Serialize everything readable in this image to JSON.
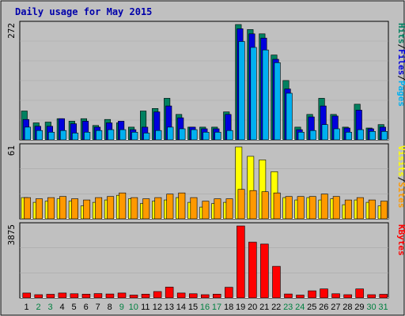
{
  "chart_data": {
    "type": "bar",
    "title": "Daily usage for May 2015",
    "categories": [
      "1",
      "2",
      "3",
      "4",
      "5",
      "6",
      "7",
      "8",
      "9",
      "10",
      "11",
      "12",
      "13",
      "14",
      "15",
      "16",
      "17",
      "18",
      "19",
      "20",
      "21",
      "22",
      "23",
      "24",
      "25",
      "26",
      "27",
      "28",
      "29",
      "30",
      "31"
    ],
    "weekend_days": [
      "2",
      "3",
      "9",
      "10",
      "16",
      "17",
      "23",
      "24",
      "30",
      "31"
    ],
    "colors": {
      "background": "#ffffff",
      "frame": "#c0c0c0",
      "plot_bg": "#c0c0c0",
      "title": "#0000aa",
      "hits": "#008060",
      "files": "#0000dd",
      "pages": "#00b0f0",
      "visits": "#ffff00",
      "sites": "#ff9900",
      "kbytes": "#ff0000",
      "weekday_label": "#000000",
      "weekend_label": "#008040"
    },
    "panels": [
      {
        "id": "top",
        "ymax": 272,
        "ymax_label": "272",
        "legend": [
          {
            "text": "Pages",
            "color": "#00b0f0"
          },
          {
            "text": "/",
            "color": "#000000"
          },
          {
            "text": "Files",
            "color": "#0000dd"
          },
          {
            "text": "/",
            "color": "#000000"
          },
          {
            "text": "Hits",
            "color": "#008060"
          }
        ],
        "series": [
          {
            "key": "hits",
            "values": [
              68,
              40,
              42,
              50,
              44,
              50,
              34,
              48,
              40,
              30,
              68,
              74,
              98,
              60,
              30,
              30,
              30,
              66,
              272,
              260,
              250,
              200,
              140,
              30,
              60,
              98,
              60,
              30,
              84,
              28,
              36
            ]
          },
          {
            "key": "files",
            "values": [
              48,
              32,
              32,
              50,
              38,
              44,
              30,
              40,
              44,
              24,
              30,
              66,
              80,
              52,
              30,
              26,
              26,
              60,
              262,
              250,
              240,
              190,
              120,
              24,
              54,
              80,
              56,
              28,
              70,
              26,
              30
            ]
          },
          {
            "key": "pages",
            "values": [
              30,
              22,
              18,
              22,
              16,
              18,
              22,
              24,
              24,
              18,
              16,
              22,
              30,
              26,
              24,
              18,
              18,
              22,
              232,
              218,
              212,
              182,
              110,
              18,
              22,
              36,
              26,
              18,
              24,
              20,
              20
            ]
          }
        ]
      },
      {
        "id": "middle",
        "ymax": 61,
        "ymax_label": "61",
        "legend": [
          {
            "text": "Sites",
            "color": "#ff9900"
          },
          {
            "text": "/",
            "color": "#000000"
          },
          {
            "text": "Visits",
            "color": "#ffff00"
          }
        ],
        "series": [
          {
            "key": "visits",
            "values": [
              18,
              14,
              15,
              17,
              15,
              11,
              14,
              16,
              20,
              17,
              13,
              15,
              16,
              18,
              14,
              10,
              13,
              14,
              61,
              53,
              50,
              40,
              18,
              16,
              18,
              16,
              17,
              12,
              16,
              14,
              11
            ]
          },
          {
            "key": "sites",
            "values": [
              18,
              17,
              18,
              19,
              17,
              16,
              18,
              19,
              22,
              18,
              17,
              18,
              21,
              22,
              18,
              15,
              17,
              17,
              25,
              24,
              23,
              22,
              19,
              19,
              19,
              21,
              19,
              16,
              18,
              16,
              15
            ]
          }
        ]
      },
      {
        "id": "bottom",
        "ymax": 3875,
        "ymax_label": "3875",
        "legend": [
          {
            "text": "KBytes",
            "color": "#ff0000"
          }
        ],
        "series": [
          {
            "key": "kbytes",
            "values": [
              260,
              170,
              190,
              260,
              220,
              200,
              230,
              210,
              260,
              150,
              200,
              340,
              580,
              260,
              220,
              170,
              200,
              570,
              3875,
              3000,
              2900,
              1700,
              210,
              150,
              380,
              480,
              220,
              170,
              480,
              170,
              190
            ]
          }
        ]
      }
    ]
  }
}
